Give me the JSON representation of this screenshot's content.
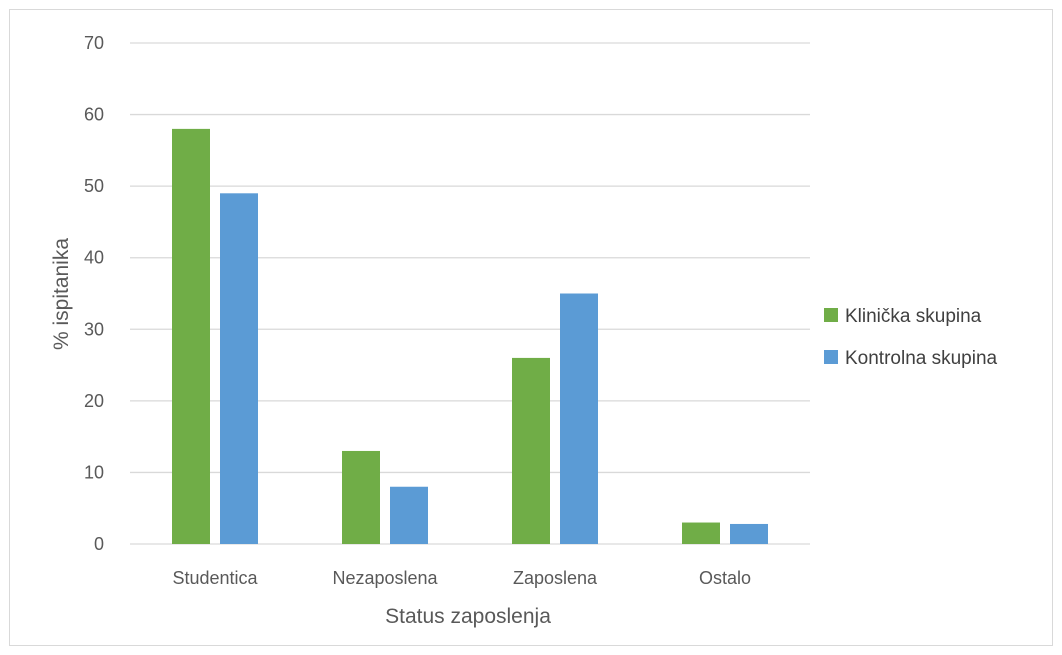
{
  "chart_data": {
    "type": "bar",
    "categories": [
      "Studentica",
      "Nezaposlena",
      "Zaposlena",
      "Ostalo"
    ],
    "series": [
      {
        "name": "Klinička skupina",
        "color": "#70ad47",
        "values": [
          58,
          13,
          26,
          3
        ]
      },
      {
        "name": "Kontrolna skupina",
        "color": "#5b9bd5",
        "values": [
          49,
          8,
          35,
          2.8
        ]
      }
    ],
    "xlabel": "Status zaposlenja",
    "ylabel": "% ispitanika",
    "ylim": [
      0,
      70
    ],
    "yticks": [
      0,
      10,
      20,
      30,
      40,
      50,
      60,
      70
    ],
    "grid": true,
    "legend_position": "right",
    "gridline_color": "#d9d9d9"
  }
}
